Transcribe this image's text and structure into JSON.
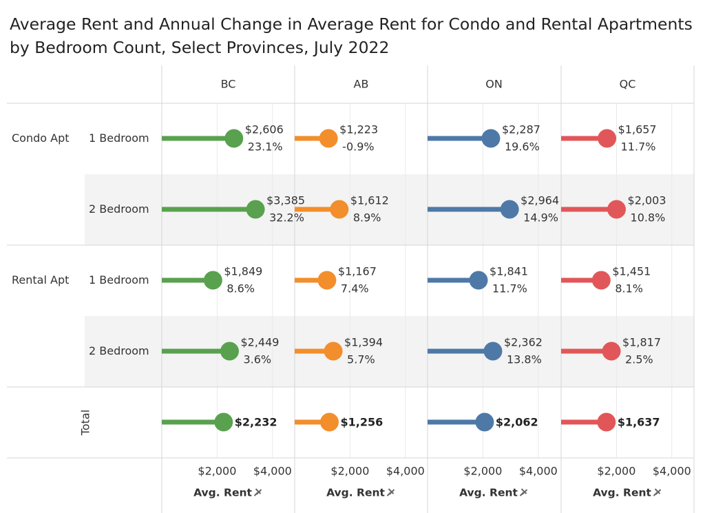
{
  "title_line1": "Average Rent and Annual Change in Average Rent for Condo and Rental Apartments",
  "title_line2": "by Bedroom Count, Select Provinces, July 2022",
  "total_label": "Total",
  "axis_title": "Avg. Rent",
  "pin_icon": "pin-icon",
  "chart_data": {
    "type": "dot",
    "columns": [
      "BC",
      "AB",
      "ON",
      "QC"
    ],
    "colors": {
      "BC": "#59a14f",
      "AB": "#f28e2b",
      "ON": "#4e79a7",
      "QC": "#e15759"
    },
    "x_ticks": [
      "$2,000",
      "$4,000"
    ],
    "x_tick_values": [
      2000,
      4000
    ],
    "xlim": [
      0,
      4800
    ],
    "groups": [
      {
        "name": "Condo Apt",
        "rows": [
          {
            "label": "1 Bedroom",
            "rent": [
              2606,
              1223,
              2287,
              1657
            ],
            "rent_labels": [
              "$2,606",
              "$1,223",
              "$2,287",
              "$1,657"
            ],
            "change_labels": [
              "23.1%",
              "-0.9%",
              "19.6%",
              "11.7%"
            ]
          },
          {
            "label": "2 Bedroom",
            "rent": [
              3385,
              1612,
              2964,
              2003
            ],
            "rent_labels": [
              "$3,385",
              "$1,612",
              "$2,964",
              "$2,003"
            ],
            "change_labels": [
              "32.2%",
              "8.9%",
              "14.9%",
              "10.8%"
            ]
          }
        ]
      },
      {
        "name": "Rental Apt",
        "rows": [
          {
            "label": "1 Bedroom",
            "rent": [
              1849,
              1167,
              1841,
              1451
            ],
            "rent_labels": [
              "$1,849",
              "$1,167",
              "$1,841",
              "$1,451"
            ],
            "change_labels": [
              "8.6%",
              "7.4%",
              "11.7%",
              "8.1%"
            ]
          },
          {
            "label": "2 Bedroom",
            "rent": [
              2449,
              1394,
              2362,
              1817
            ],
            "rent_labels": [
              "$2,449",
              "$1,394",
              "$2,362",
              "$1,817"
            ],
            "change_labels": [
              "3.6%",
              "5.7%",
              "13.8%",
              "2.5%"
            ]
          }
        ]
      }
    ],
    "total": {
      "rent": [
        2232,
        1256,
        2062,
        1637
      ],
      "rent_labels": [
        "$2,232",
        "$1,256",
        "$2,062",
        "$1,637"
      ]
    }
  }
}
